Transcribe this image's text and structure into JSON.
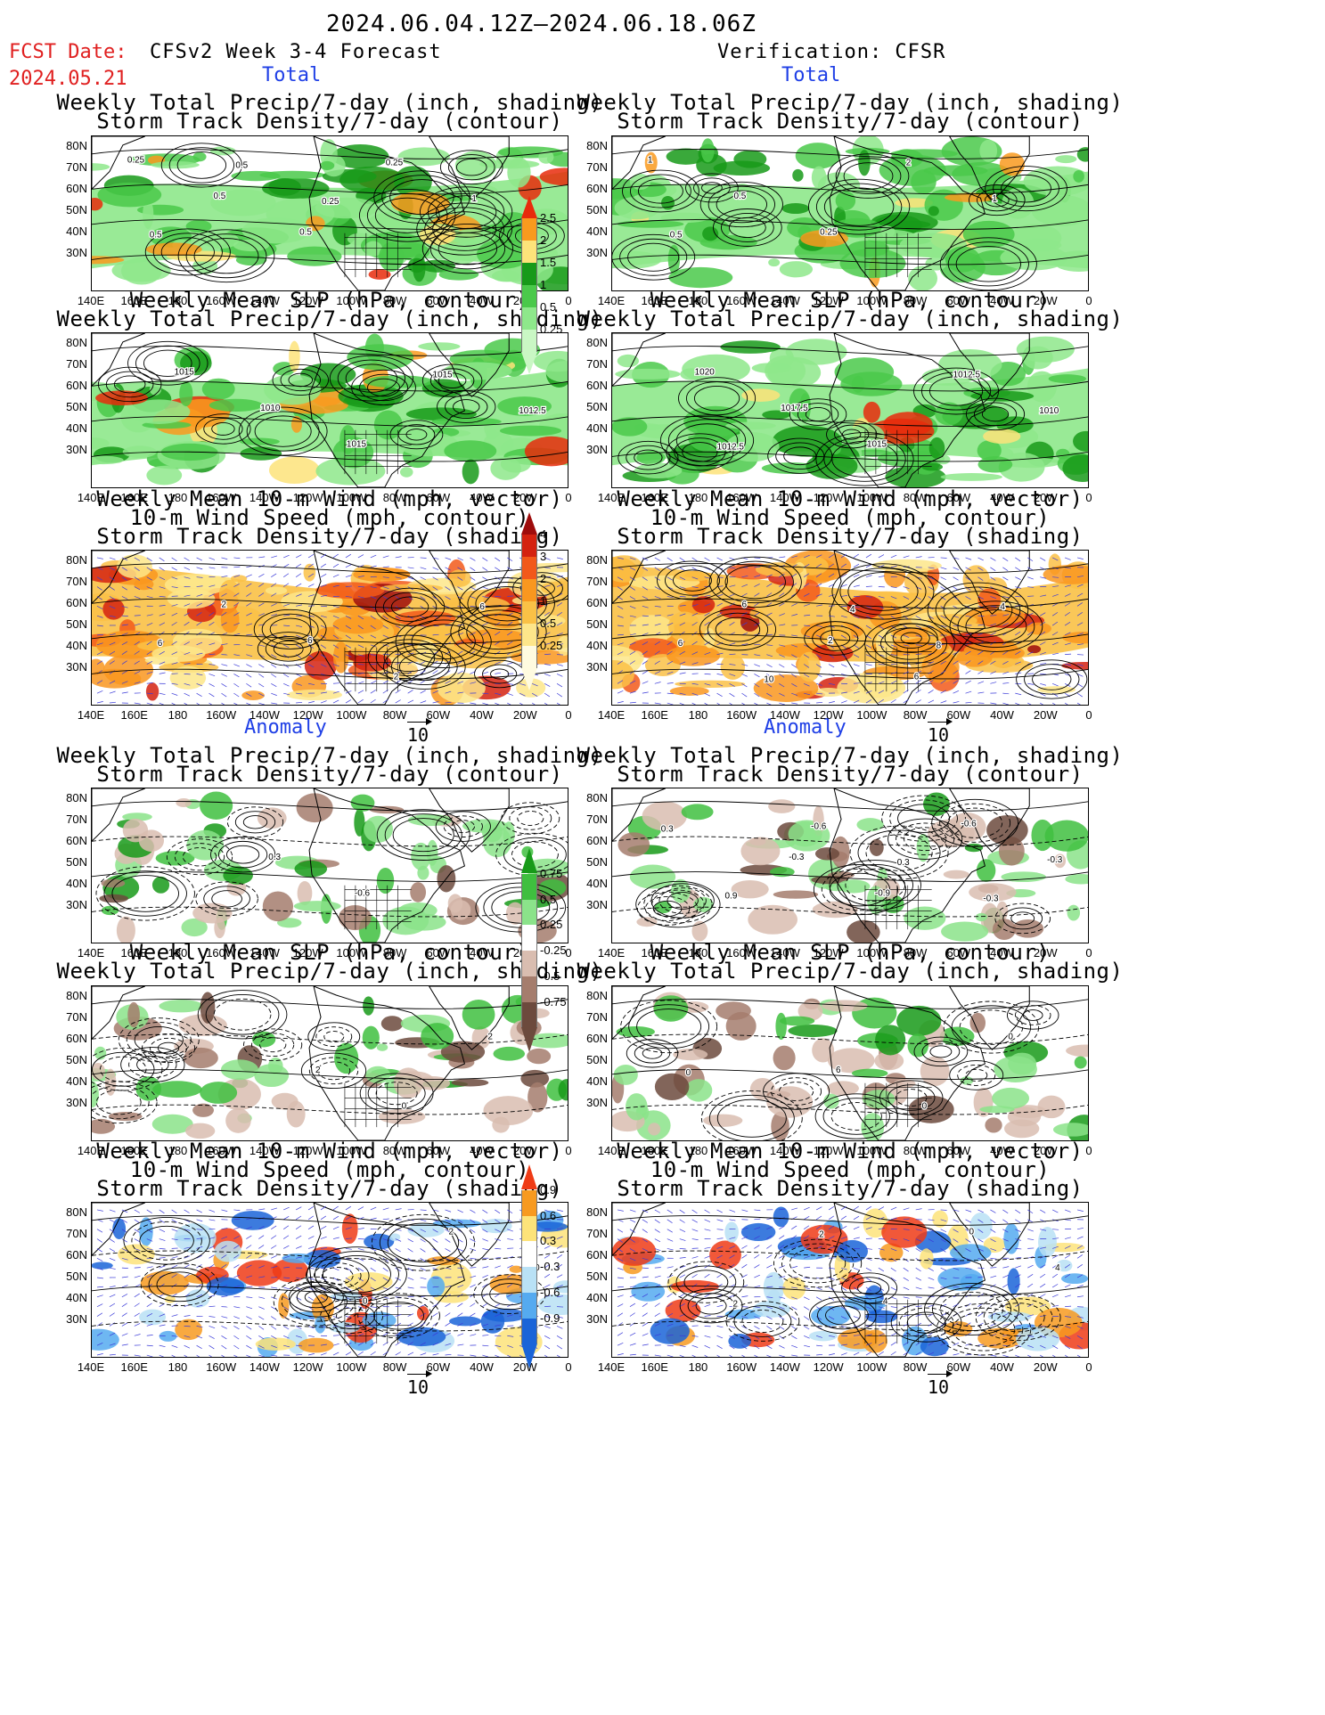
{
  "header": {
    "date_range": "2024.06.04.12Z–2024.06.18.06Z",
    "fcst_label": "FCST Date:",
    "fcst_date": "2024.05.21",
    "left_title": "CFSv2 Week 3-4 Forecast",
    "right_title": "Verification: CFSR",
    "total_label": "Total",
    "anomaly_label": "Anomaly"
  },
  "panel_titles": {
    "precip_storm": [
      "Weekly Total Precip/7-day (inch, shading)",
      "Storm Track Density/7-day (contour)"
    ],
    "slp_precip": [
      "Weekly Mean SLP (hPa, contour)",
      "Weekly Total Precip/7-day (inch, shading)"
    ],
    "wind_storm": [
      "Weekly Mean 10-m Wind (mph, vector)",
      "10-m Wind Speed (mph, contour)",
      "Storm Track Density/7-day (shading)"
    ]
  },
  "axes": {
    "lat": [
      "80N",
      "70N",
      "60N",
      "50N",
      "40N",
      "30N"
    ],
    "lon": [
      "140E",
      "160E",
      "180",
      "160W",
      "140W",
      "120W",
      "100W",
      "80W",
      "60W",
      "40W",
      "20W",
      "0"
    ]
  },
  "vector_ref": "10",
  "colorbars": {
    "total_precip": {
      "labels": [
        "2.5",
        "2",
        "1.5",
        "1",
        "0.5",
        "0.25"
      ],
      "colors": [
        "#e82b0c",
        "#f99a1e",
        "#fde37a",
        "#179a19",
        "#4ac94a",
        "#8ee88b",
        "#c9f7c4"
      ]
    },
    "total_storm": {
      "labels": [
        "4",
        "3",
        "2",
        "1",
        "0.5",
        "0.25"
      ],
      "colors": [
        "#9e0c0c",
        "#d42210",
        "#f2591a",
        "#f9971f",
        "#fac146",
        "#fde68a",
        "#fffbe0"
      ]
    },
    "anom_precip": {
      "labels": [
        "0.75",
        "0.5",
        "0.25",
        "-0.25",
        "-0.5",
        "-0.75"
      ],
      "colors": [
        "#179a19",
        "#3fbf3f",
        "#8be38a",
        "#ffffff",
        "#d9bdb0",
        "#a57d6d",
        "#6c4a3d"
      ]
    },
    "anom_storm": {
      "labels": [
        "0.9",
        "0.6",
        "0.3",
        "-0.3",
        "-0.6",
        "-0.9"
      ],
      "colors": [
        "#ef3b16",
        "#f79a20",
        "#fde37a",
        "#ffffff",
        "#b9e1f5",
        "#55aaf0",
        "#1a64d8"
      ]
    }
  },
  "contour_labels": {
    "fp1": [
      "0.25",
      "0.5",
      "0.5",
      "0.25",
      "1",
      "0.5",
      "0.5",
      "0.25"
    ],
    "fp2": [
      "1015",
      "1010",
      "1015",
      "1015",
      "1012.5"
    ],
    "fp3": [
      "2",
      "6",
      "2",
      "6",
      "6"
    ],
    "vp1": [
      "1",
      "0.5",
      "0.25",
      "2",
      "1",
      "0.5"
    ],
    "vp2": [
      "1020",
      "1017.5",
      "1015",
      "1012.5",
      "1010",
      "1012.5"
    ],
    "vp3": [
      "6",
      "2",
      "6",
      "4",
      "6",
      "10",
      "4",
      "8"
    ],
    "fa1": [
      "0.3",
      "-0.6"
    ],
    "fa2": [
      "2",
      "0",
      "2"
    ],
    "fa3": [
      "0",
      "2",
      "0"
    ],
    "va1": [
      "-0.3",
      "-0.9",
      "-0.6",
      "-0.3",
      "0.9",
      "-0.6",
      "0.3",
      "-0.3",
      "0.3"
    ],
    "va2": [
      "6",
      "0",
      "0",
      "0"
    ],
    "va3": [
      "4",
      "0",
      "4",
      "2",
      "2"
    ]
  }
}
